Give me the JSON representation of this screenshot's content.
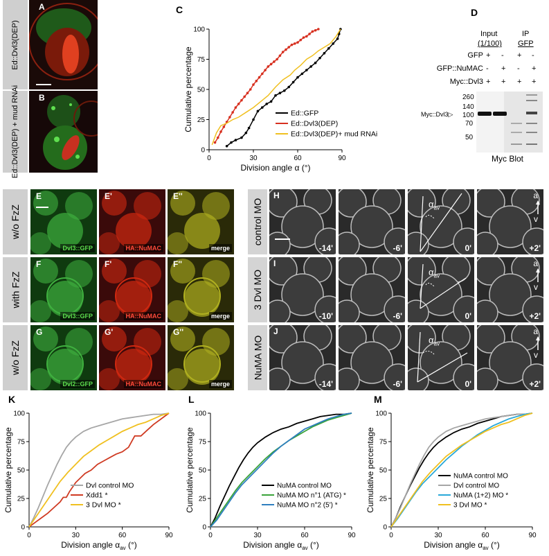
{
  "panelA": {
    "letter": "A",
    "side": "Ed::Dvl3(DEP)"
  },
  "panelB": {
    "letter": "B",
    "side": "Ed::Dvl3(DEP) + mud RNAi"
  },
  "panelC": {
    "letter": "C"
  },
  "panelD": {
    "letter": "D",
    "input_label": "Input",
    "input_sub": "(1/100)",
    "ip_label": "IP",
    "ip_sub": "GFP",
    "rows": [
      {
        "name": "GFP",
        "vals": [
          "+",
          "-",
          "+",
          "-"
        ]
      },
      {
        "name": "GFP::NuMAC",
        "vals": [
          "-",
          "+",
          "-",
          "+"
        ]
      },
      {
        "name": "Myc::Dvl3",
        "vals": [
          "+",
          "+",
          "+",
          "+"
        ]
      }
    ],
    "markers": [
      "260",
      "140",
      "100",
      "70",
      "50"
    ],
    "band_label": "Myc::Dvl3",
    "caption": "Myc Blot"
  },
  "rowEFG": [
    {
      "row_label": "w/o FzZ",
      "letters": [
        "E",
        "E'",
        "E''"
      ],
      "tags": [
        "Dvl3::GFP",
        "HA::NuMAC",
        "merge"
      ]
    },
    {
      "row_label": "with FzZ",
      "letters": [
        "F",
        "F'",
        "F''"
      ],
      "tags": [
        "Dvl3::GFP",
        "HA::NuMAC",
        "merge"
      ]
    },
    {
      "row_label": "w/o FzZ",
      "letters": [
        "G",
        "G'",
        "G''"
      ],
      "tags": [
        "Dvl2::GFP",
        "HA::NuMAC",
        "merge"
      ]
    }
  ],
  "rowHIJ": [
    {
      "row_label": "control MO",
      "letter": "H",
      "times": [
        "-14'",
        "-6'",
        "0'",
        "+2'"
      ]
    },
    {
      "row_label": "3 Dvl MO",
      "letter": "I",
      "times": [
        "-10'",
        "-6'",
        "0'",
        "+2'"
      ]
    },
    {
      "row_label": "NuMA MO",
      "letter": "J",
      "times": [
        "-14'",
        "-6'",
        "0'",
        "+2'"
      ]
    }
  ],
  "angle_label": "α",
  "angle_sub": "av",
  "axis_a": "a",
  "axis_v": "v",
  "chart_data": [
    {
      "id": "C",
      "type": "line",
      "xlabel": "Division angle α (°)",
      "ylabel": "Cumulative percentage",
      "xlim": [
        0,
        90
      ],
      "ylim": [
        0,
        100
      ],
      "xticks": [
        0,
        30,
        60,
        90
      ],
      "yticks": [
        0,
        25,
        50,
        75,
        100
      ],
      "legend_position": "bottom-right",
      "series": [
        {
          "name": "Ed::GFP",
          "color": "#000000",
          "marker": true,
          "x": [
            12,
            15,
            18,
            22,
            25,
            27,
            30,
            33,
            36,
            39,
            42,
            45,
            48,
            51,
            54,
            57,
            60,
            63,
            66,
            69,
            72,
            75,
            78,
            81,
            84,
            87,
            88,
            89
          ],
          "y": [
            3,
            6,
            8,
            10,
            14,
            18,
            25,
            32,
            35,
            38,
            40,
            45,
            47,
            49,
            52,
            56,
            60,
            63,
            66,
            69,
            72,
            76,
            80,
            84,
            88,
            92,
            96,
            100
          ]
        },
        {
          "name": "Ed::Dvl3(DEP)",
          "color": "#d73020",
          "marker": true,
          "x": [
            4,
            6,
            8,
            10,
            12,
            14,
            16,
            18,
            20,
            22,
            24,
            26,
            28,
            30,
            32,
            34,
            36,
            38,
            40,
            42,
            44,
            46,
            48,
            50,
            52,
            54,
            56,
            58,
            60,
            62,
            64,
            66,
            68,
            70,
            72,
            74
          ],
          "y": [
            6,
            10,
            15,
            19,
            23,
            27,
            31,
            35,
            38,
            41,
            44,
            47,
            50,
            54,
            57,
            60,
            63,
            66,
            69,
            71,
            73,
            75,
            78,
            81,
            83,
            85,
            87,
            88,
            89,
            91,
            93,
            94,
            96,
            98,
            99,
            100
          ]
        },
        {
          "name": "Ed::Dvl3(DEP)+ mud RNAi",
          "color": "#f0c020",
          "marker": false,
          "x": [
            2,
            5,
            8,
            12,
            16,
            20,
            25,
            30,
            35,
            40,
            45,
            50,
            55,
            58,
            62,
            66,
            70,
            74,
            78,
            82,
            86,
            89
          ],
          "y": [
            4,
            14,
            20,
            22,
            25,
            27,
            31,
            35,
            40,
            45,
            52,
            58,
            62,
            66,
            70,
            75,
            78,
            82,
            85,
            88,
            94,
            100
          ]
        }
      ]
    },
    {
      "id": "K",
      "type": "line",
      "xlabel": "Division angle α",
      "xlabel_sub": "av",
      "xlabel_unit": "(°)",
      "ylabel": "Cumulative percentage",
      "xlim": [
        0,
        90
      ],
      "ylim": [
        0,
        100
      ],
      "xticks": [
        0,
        30,
        60,
        90
      ],
      "yticks": [
        0,
        25,
        50,
        75,
        100
      ],
      "legend_position": "bottom-right",
      "series": [
        {
          "name": "Dvl control MO",
          "color": "#a6a6a6",
          "x": [
            0,
            3,
            6,
            9,
            12,
            15,
            18,
            21,
            24,
            27,
            30,
            35,
            40,
            45,
            50,
            55,
            60,
            65,
            70,
            75,
            80,
            85,
            90
          ],
          "y": [
            0,
            8,
            17,
            27,
            37,
            46,
            55,
            63,
            70,
            75,
            79,
            84,
            87,
            89,
            91,
            93,
            95,
            96,
            97,
            98,
            99,
            99,
            100
          ]
        },
        {
          "name": "Xdd1 *",
          "color": "#cf3a22",
          "x": [
            0,
            4,
            8,
            12,
            16,
            20,
            22,
            24,
            26,
            28,
            30,
            33,
            36,
            40,
            44,
            48,
            52,
            56,
            60,
            64,
            68,
            72,
            76,
            80,
            84,
            88,
            90
          ],
          "y": [
            0,
            4,
            8,
            12,
            17,
            22,
            26,
            26,
            31,
            35,
            39,
            43,
            47,
            50,
            55,
            58,
            61,
            64,
            66,
            70,
            80,
            80,
            85,
            90,
            94,
            98,
            100
          ]
        },
        {
          "name": "3 Dvl MO *",
          "color": "#f0c020",
          "x": [
            0,
            4,
            8,
            12,
            16,
            20,
            25,
            30,
            35,
            40,
            45,
            50,
            55,
            60,
            65,
            70,
            75,
            80,
            85,
            90
          ],
          "y": [
            0,
            8,
            16,
            24,
            32,
            40,
            48,
            55,
            62,
            67,
            72,
            76,
            80,
            84,
            87,
            90,
            92,
            95,
            98,
            100
          ]
        }
      ]
    },
    {
      "id": "L",
      "type": "line",
      "xlabel": "Division angle α",
      "xlabel_sub": "av",
      "xlabel_unit": "(°)",
      "ylabel": "Cumulative percentage",
      "xlim": [
        0,
        90
      ],
      "ylim": [
        0,
        100
      ],
      "xticks": [
        0,
        30,
        60,
        90
      ],
      "yticks": [
        0,
        25,
        50,
        75,
        100
      ],
      "legend_position": "bottom-right",
      "series": [
        {
          "name": "NuMA control MO",
          "color": "#000000",
          "x": [
            0,
            3,
            6,
            9,
            12,
            15,
            18,
            21,
            24,
            27,
            30,
            35,
            40,
            45,
            50,
            55,
            60,
            65,
            70,
            75,
            80,
            85,
            90
          ],
          "y": [
            0,
            8,
            18,
            27,
            36,
            44,
            52,
            59,
            65,
            70,
            74,
            79,
            83,
            86,
            88,
            91,
            93,
            95,
            97,
            98,
            99,
            99,
            100
          ]
        },
        {
          "name": "NuMA MO n°1 (ATG) *",
          "color": "#3aa33a",
          "x": [
            0,
            4,
            8,
            12,
            16,
            20,
            25,
            30,
            35,
            40,
            45,
            50,
            55,
            60,
            65,
            70,
            75,
            80,
            85,
            90
          ],
          "y": [
            0,
            8,
            16,
            24,
            32,
            39,
            46,
            53,
            60,
            66,
            71,
            76,
            80,
            84,
            88,
            91,
            94,
            96,
            98,
            100
          ]
        },
        {
          "name": "NuMA MO n°2 (5') *",
          "color": "#2e7fbf",
          "x": [
            0,
            4,
            8,
            12,
            16,
            20,
            25,
            30,
            35,
            40,
            45,
            50,
            55,
            60,
            65,
            70,
            75,
            80,
            85,
            90
          ],
          "y": [
            0,
            6,
            14,
            22,
            30,
            37,
            44,
            51,
            58,
            65,
            71,
            76,
            81,
            86,
            89,
            92,
            95,
            97,
            99,
            100
          ]
        }
      ]
    },
    {
      "id": "M",
      "type": "line",
      "xlabel": "Division angle α",
      "xlabel_sub": "av",
      "xlabel_unit": "(°)",
      "ylabel": "Cumulative percentage",
      "xlim": [
        0,
        90
      ],
      "ylim": [
        0,
        100
      ],
      "xticks": [
        0,
        30,
        60,
        90
      ],
      "yticks": [
        0,
        25,
        50,
        75,
        100
      ],
      "legend_position": "bottom-right",
      "series": [
        {
          "name": "NuMA control MO",
          "color": "#000000",
          "x": [
            0,
            3,
            6,
            9,
            12,
            15,
            18,
            21,
            24,
            27,
            30,
            35,
            40,
            45,
            50,
            55,
            60,
            65,
            70,
            75,
            80,
            85,
            90
          ],
          "y": [
            0,
            8,
            18,
            27,
            36,
            44,
            52,
            59,
            65,
            70,
            74,
            79,
            83,
            86,
            88,
            91,
            93,
            95,
            97,
            98,
            99,
            99,
            100
          ]
        },
        {
          "name": "Dvl control MO",
          "color": "#a6a6a6",
          "x": [
            0,
            3,
            6,
            9,
            12,
            15,
            18,
            21,
            24,
            27,
            30,
            35,
            40,
            45,
            50,
            55,
            60,
            65,
            70,
            75,
            80,
            85,
            90
          ],
          "y": [
            0,
            8,
            17,
            27,
            37,
            46,
            55,
            63,
            70,
            75,
            79,
            84,
            87,
            89,
            91,
            93,
            95,
            96,
            97,
            98,
            99,
            99,
            100
          ]
        },
        {
          "name": "NuMA (1+2) MO *",
          "color": "#29a8d8",
          "x": [
            0,
            4,
            8,
            12,
            16,
            20,
            25,
            30,
            35,
            40,
            45,
            50,
            55,
            60,
            65,
            70,
            75,
            80,
            85,
            90
          ],
          "y": [
            0,
            7,
            15,
            23,
            31,
            38,
            45,
            52,
            59,
            65,
            71,
            76,
            81,
            85,
            89,
            92,
            95,
            97,
            99,
            100
          ]
        },
        {
          "name": "3 Dvl MO *",
          "color": "#f0c020",
          "x": [
            0,
            4,
            8,
            12,
            16,
            20,
            25,
            30,
            35,
            40,
            45,
            50,
            55,
            60,
            65,
            70,
            75,
            80,
            85,
            90
          ],
          "y": [
            0,
            8,
            16,
            24,
            32,
            40,
            48,
            55,
            62,
            67,
            72,
            76,
            80,
            84,
            87,
            90,
            92,
            95,
            98,
            100
          ]
        }
      ]
    }
  ]
}
